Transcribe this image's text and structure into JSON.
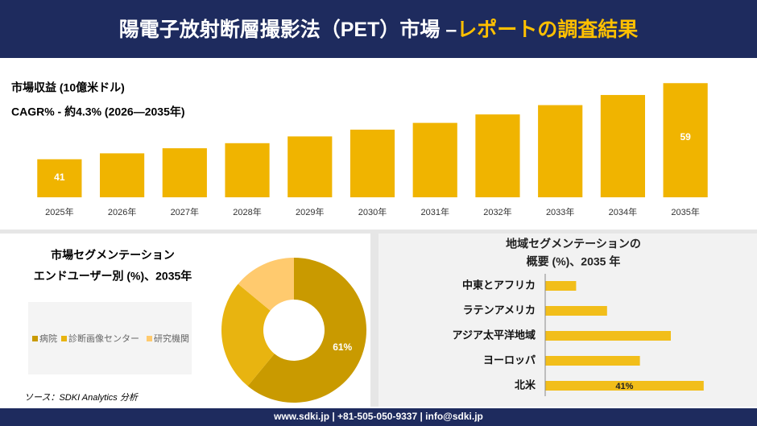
{
  "header": {
    "title": "陽電子放射断層撮影法（PET）市場 –",
    "highlight": "レポートの調査結果"
  },
  "chart_data": [
    {
      "type": "bar",
      "title": "市場収益 (10億米ドル)",
      "subtitle": "CAGR% - 約4.3% (2026—2035年)",
      "categories": [
        "2025年",
        "2026年",
        "2027年",
        "2028年",
        "2029年",
        "2030年",
        "2031年",
        "2032年",
        "2033年",
        "2034年",
        "2035年"
      ],
      "values": [
        41,
        42.4,
        43.6,
        44.8,
        46.4,
        48,
        49.6,
        51.6,
        53.8,
        56.2,
        59
      ],
      "value_labels": [
        41,
        null,
        null,
        null,
        null,
        null,
        null,
        null,
        null,
        null,
        59
      ],
      "color": "#f0b400",
      "ylim": [
        32,
        60
      ]
    },
    {
      "type": "pie",
      "title": [
        "市場セグメンテーション",
        "エンドユーザー別 (%)、2035年"
      ],
      "categories": [
        "病院",
        "診断画像センター",
        "研究機関"
      ],
      "values": [
        61,
        25,
        14
      ],
      "value_labels": [
        "61%",
        null,
        null
      ],
      "colors": [
        "#c99a00",
        "#e8b410",
        "#ffca6e"
      ]
    },
    {
      "type": "barh",
      "title": [
        "地域セグメンテーションの",
        "概要 (%)、2035 年"
      ],
      "categories": [
        "中東とアフリカ",
        "ラテンアメリカ",
        "アジア太平洋地域",
        "ヨーロッパ",
        "北米"
      ],
      "values": [
        8,
        16,
        32.5,
        24.5,
        41
      ],
      "value_labels": [
        null,
        null,
        null,
        null,
        "41%"
      ],
      "color": "#f2be1a",
      "xlim": [
        0,
        45
      ]
    }
  ],
  "source": "ソース：SDKI Analytics 分析",
  "footer": "www.sdki.jp | +81-505-050-9337 | info@sdki.jp"
}
